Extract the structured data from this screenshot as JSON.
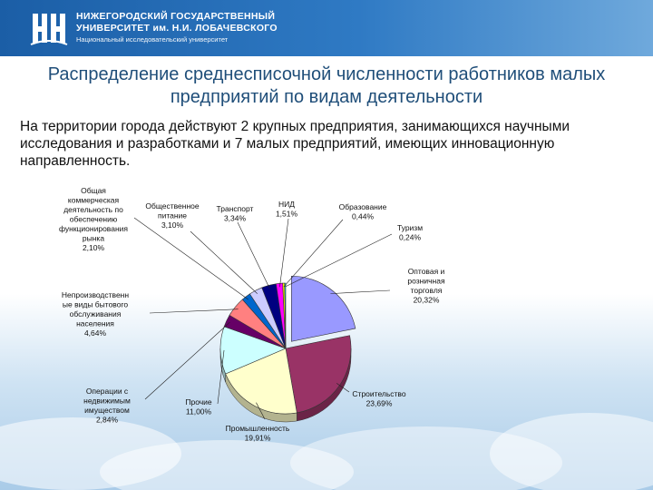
{
  "header": {
    "university_line1": "НИЖЕГОРОДСКИЙ ГОСУДАРСТВЕННЫЙ",
    "university_line2": "УНИВЕРСИТЕТ им. Н.И. ЛОБАЧЕВСКОГО",
    "university_line3": "Национальный исследовательский университет",
    "logo_icon": "nngu-logo-icon"
  },
  "slide": {
    "title": "Распределение среднесписочной численности работников малых предприятий по видам деятельности",
    "intro": "На территории города действуют 2 крупных предприятия, занимающихся научными исследования и разработками и 7 малых предприятий, имеющих инновационную направленность."
  },
  "chart_data": {
    "type": "pie",
    "slices": [
      {
        "label": [
          "Оптовая и",
          "розничная",
          "торговля",
          "20,32%"
        ],
        "value": 20.32,
        "color": "#9999ff"
      },
      {
        "label": [
          "Строительство",
          "23,69%"
        ],
        "value": 23.69,
        "color": "#993366"
      },
      {
        "label": [
          "Промышленность",
          "19,91%"
        ],
        "value": 19.91,
        "color": "#ffffcc"
      },
      {
        "label": [
          "Прочие",
          "11,00%"
        ],
        "value": 11.0,
        "color": "#ccffff"
      },
      {
        "label": [
          "Операции с",
          "недвижимым",
          "имуществом",
          "2,84%"
        ],
        "value": 2.84,
        "color": "#660066"
      },
      {
        "label": [
          "Непроизводственн",
          "ые виды бытового",
          "обслуживания",
          "населения",
          "4,64%"
        ],
        "value": 4.64,
        "color": "#ff8080"
      },
      {
        "label": [
          "Общая",
          "коммерческая",
          "деятельность по",
          "обеспечению",
          "функционирования",
          "рынка",
          "2,10%"
        ],
        "value": 2.1,
        "color": "#0066cc"
      },
      {
        "label": [
          "Общественное",
          "питание",
          "3,10%"
        ],
        "value": 3.1,
        "color": "#ccccff"
      },
      {
        "label": [
          "Транспорт",
          "3,34%"
        ],
        "value": 3.34,
        "color": "#000080"
      },
      {
        "label": [
          "НИД",
          "1,51%"
        ],
        "value": 1.51,
        "color": "#ff00ff"
      },
      {
        "label": [
          "Образование",
          "0,44%"
        ],
        "value": 0.44,
        "color": "#ffff00"
      },
      {
        "label": [
          "Туризм",
          "0,24%"
        ],
        "value": 0.24,
        "color": "#00ffff"
      }
    ]
  }
}
